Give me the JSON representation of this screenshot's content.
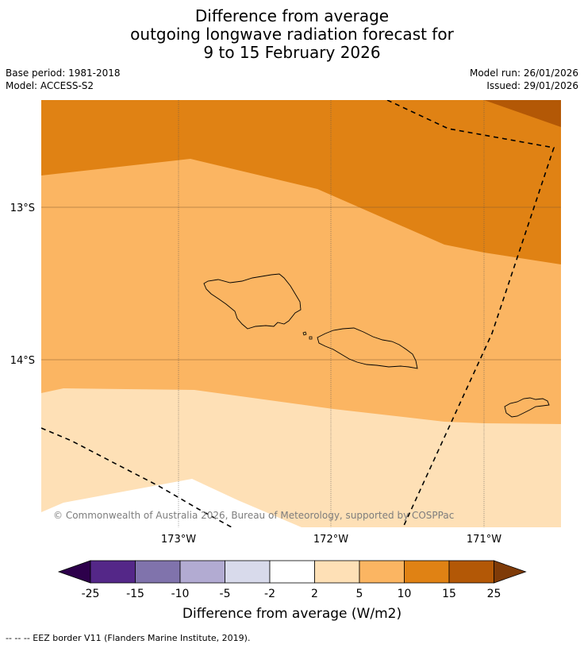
{
  "header": {
    "title_line1": "Difference from average",
    "title_line2": "outgoing longwave radiation forecast for",
    "title_line3": "9 to 15 February 2026",
    "base_period": "Base period: 1981-2018",
    "model": "Model: ACCESS-S2",
    "model_run": "Model run: 26/01/2026",
    "issued": "Issued: 29/01/2026"
  },
  "map": {
    "lat_labels": [
      "13°S",
      "14°S"
    ],
    "lon_labels": [
      "173°W",
      "172°W",
      "171°W"
    ],
    "copyright": "© Commonwealth of Australia 2026, Bureau of Meteorology, supported by COSPPac",
    "colors": {
      "c5_10": "#fbb562",
      "c10_15": "#e08214",
      "c15_25": "#b35806",
      "c2_5": "#fee0b6",
      "white": "#ffffff"
    }
  },
  "colorbar": {
    "ticks": [
      "-25",
      "-15",
      "-10",
      "-5",
      "-2",
      "2",
      "5",
      "10",
      "15",
      "25"
    ],
    "colors": [
      "#2d004b",
      "#542788",
      "#8073ac",
      "#b2abd2",
      "#d8daeb",
      "#ffffff",
      "#fee0b6",
      "#fbb562",
      "#e08214",
      "#b35806",
      "#7f3b08"
    ],
    "title": "Difference from average (W/m2)"
  },
  "footnote": "--  --  -- EEZ border V11 (Flanders Marine Institute, 2019)."
}
